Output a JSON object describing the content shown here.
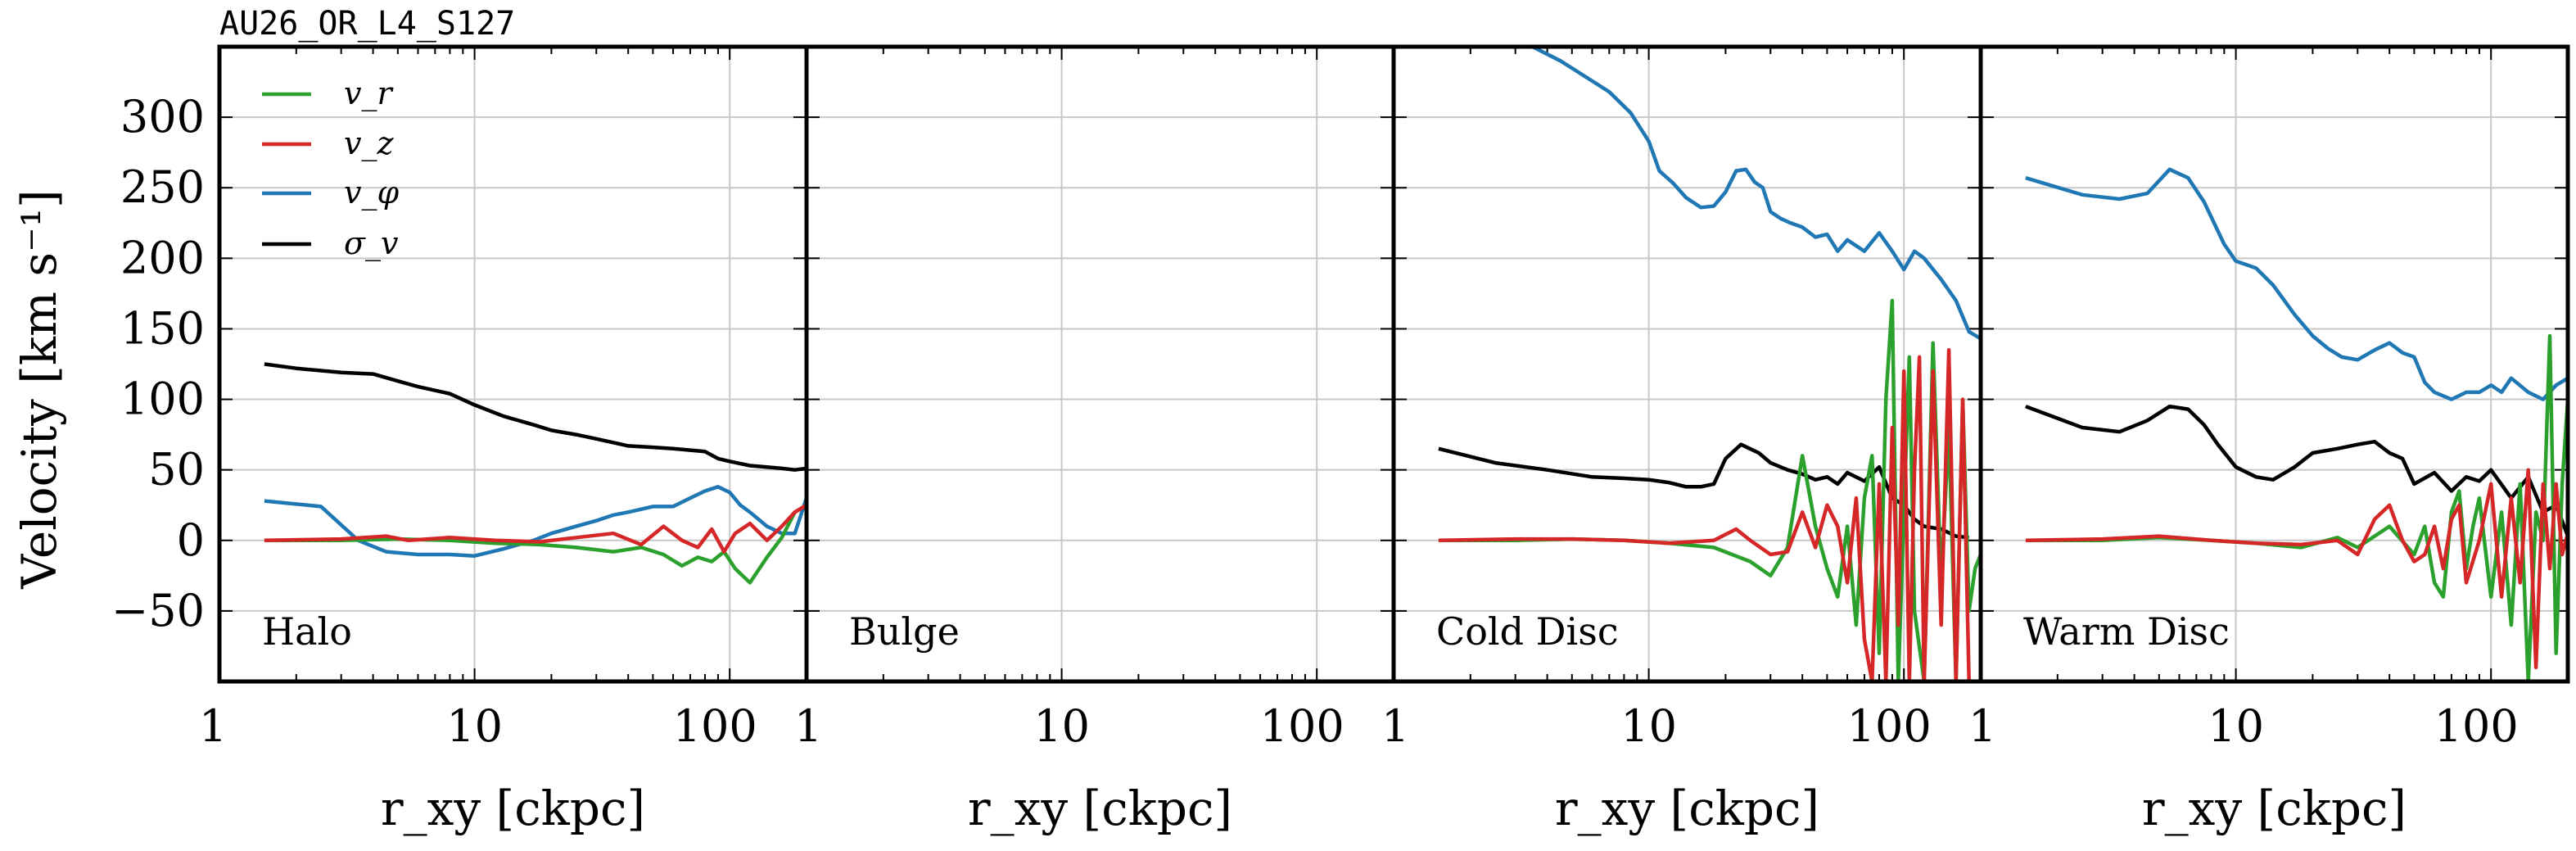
{
  "figure_title": "AU26_OR_L4_S127",
  "ylabel": "Velocity [km s⁻¹]",
  "xlabel": "r_xy [ckpc]",
  "legend": [
    "v_r",
    "v_z",
    "v_φ",
    "σ_v"
  ],
  "colors": {
    "v_r": "#2ca02c",
    "v_z": "#d62728",
    "v_phi": "#1f77b4",
    "sigma_v": "#000000"
  },
  "chart_data": [
    {
      "type": "line",
      "panel": "Halo",
      "xscale": "log",
      "xlim": [
        1,
        200
      ],
      "ylim": [
        -100,
        350
      ],
      "grid": true,
      "xticks": [
        1,
        10,
        100
      ],
      "yticks": [
        -50,
        0,
        50,
        100,
        150,
        200,
        250,
        300
      ],
      "legend_position": "top-left",
      "series": [
        {
          "name": "σ_v",
          "key": "sigma_v",
          "x": [
            1.5,
            2,
            3,
            4,
            5,
            6,
            8,
            10,
            13,
            17,
            20,
            25,
            30,
            40,
            50,
            60,
            70,
            80,
            90,
            100,
            120,
            140,
            160,
            180,
            200
          ],
          "y": [
            125,
            122,
            119,
            118,
            113,
            109,
            104,
            96,
            88,
            82,
            78,
            75,
            72,
            67,
            66,
            65,
            64,
            63,
            58,
            56,
            53,
            52,
            51,
            50,
            51
          ]
        },
        {
          "name": "v_φ",
          "key": "v_phi",
          "x": [
            1.5,
            2.5,
            3.5,
            4.5,
            6,
            8,
            10,
            13,
            17,
            20,
            25,
            30,
            35,
            40,
            50,
            60,
            70,
            80,
            90,
            100,
            110,
            120,
            140,
            160,
            180,
            200
          ],
          "y": [
            28,
            24,
            0,
            -8,
            -10,
            -10,
            -11,
            -6,
            0,
            5,
            10,
            14,
            18,
            20,
            24,
            24,
            30,
            35,
            38,
            34,
            25,
            20,
            10,
            5,
            5,
            30
          ]
        },
        {
          "name": "v_r",
          "key": "v_r",
          "x": [
            1.5,
            3,
            5,
            8,
            12,
            18,
            25,
            35,
            45,
            55,
            65,
            75,
            85,
            95,
            105,
            120,
            140,
            160,
            180,
            200
          ],
          "y": [
            0,
            0,
            1,
            0,
            -2,
            -3,
            -5,
            -8,
            -5,
            -10,
            -18,
            -12,
            -15,
            -8,
            -20,
            -30,
            -12,
            2,
            20,
            25
          ]
        },
        {
          "name": "v_z",
          "key": "v_z",
          "x": [
            1.5,
            3,
            4.5,
            5.5,
            8,
            12,
            18,
            25,
            35,
            45,
            55,
            65,
            75,
            85,
            95,
            105,
            120,
            140,
            160,
            180,
            200
          ],
          "y": [
            0,
            1,
            3,
            0,
            2,
            0,
            -1,
            2,
            5,
            -3,
            10,
            0,
            -5,
            8,
            -8,
            5,
            12,
            0,
            10,
            20,
            25
          ]
        }
      ]
    },
    {
      "type": "line",
      "panel": "Bulge",
      "xscale": "log",
      "xlim": [
        1,
        200
      ],
      "ylim": [
        -100,
        350
      ],
      "grid": true,
      "xticks": [
        1,
        10,
        100
      ],
      "series": []
    },
    {
      "type": "line",
      "panel": "Cold Disc",
      "xscale": "log",
      "xlim": [
        1,
        200
      ],
      "ylim": [
        -100,
        350
      ],
      "grid": true,
      "xticks": [
        1,
        10,
        100
      ],
      "series": [
        {
          "name": "v_φ",
          "key": "v_phi",
          "x": [
            3.5,
            4.5,
            5.5,
            7,
            8.5,
            10,
            11,
            12.5,
            14,
            16,
            18,
            20,
            22,
            24,
            26,
            28,
            30,
            33,
            36,
            40,
            45,
            50,
            55,
            60,
            70,
            80,
            90,
            100,
            110,
            120,
            140,
            160,
            180,
            200
          ],
          "y": [
            350,
            340,
            330,
            318,
            303,
            283,
            262,
            253,
            243,
            236,
            237,
            247,
            262,
            263,
            254,
            250,
            233,
            228,
            225,
            222,
            215,
            217,
            205,
            213,
            205,
            218,
            205,
            192,
            205,
            200,
            185,
            170,
            148,
            143
          ]
        },
        {
          "name": "σ_v",
          "key": "sigma_v",
          "x": [
            1.5,
            2.5,
            4,
            6,
            8,
            10,
            12,
            14,
            16,
            18,
            20,
            23,
            27,
            30,
            35,
            40,
            45,
            50,
            55,
            60,
            70,
            80,
            90,
            100,
            110,
            120,
            140,
            160,
            180
          ],
          "y": [
            65,
            55,
            50,
            45,
            44,
            43,
            41,
            38,
            38,
            40,
            58,
            68,
            62,
            55,
            50,
            47,
            43,
            45,
            40,
            48,
            42,
            52,
            30,
            25,
            15,
            10,
            8,
            3,
            2
          ]
        },
        {
          "name": "v_r",
          "key": "v_r",
          "x": [
            1.5,
            3,
            5,
            8,
            12,
            18,
            25,
            30,
            35,
            40,
            45,
            50,
            55,
            60,
            65,
            70,
            75,
            80,
            85,
            90,
            95,
            100,
            105,
            110,
            120,
            130,
            140,
            150,
            160,
            170,
            180,
            190,
            200
          ],
          "y": [
            0,
            0,
            1,
            0,
            -2,
            -5,
            -15,
            -25,
            -5,
            60,
            10,
            -20,
            -40,
            10,
            -60,
            30,
            60,
            -80,
            100,
            170,
            -100,
            20,
            130,
            -50,
            -100,
            140,
            -30,
            80,
            -100,
            100,
            -50,
            -20,
            -10
          ]
        },
        {
          "name": "v_z",
          "key": "v_z",
          "x": [
            1.5,
            3,
            5,
            8,
            12,
            18,
            22,
            25,
            30,
            35,
            40,
            45,
            50,
            55,
            60,
            65,
            70,
            75,
            80,
            85,
            90,
            95,
            100,
            105,
            110,
            115,
            120,
            130,
            140,
            150,
            160,
            170,
            180
          ],
          "y": [
            0,
            1,
            1,
            0,
            -2,
            0,
            8,
            0,
            -10,
            -8,
            20,
            -5,
            25,
            10,
            -30,
            30,
            -70,
            -100,
            40,
            -100,
            80,
            -60,
            120,
            -100,
            50,
            130,
            -100,
            120,
            -60,
            135,
            -100,
            100,
            -100
          ]
        }
      ]
    },
    {
      "type": "line",
      "panel": "Warm Disc",
      "xscale": "log",
      "xlim": [
        1,
        200
      ],
      "ylim": [
        -100,
        350
      ],
      "grid": true,
      "xticks": [
        1,
        10,
        100
      ],
      "series": [
        {
          "name": "v_φ",
          "key": "v_phi",
          "x": [
            1.5,
            2.5,
            3.5,
            4.5,
            5.5,
            6.5,
            7.5,
            9,
            10,
            12,
            14,
            17,
            20,
            23,
            26,
            30,
            35,
            40,
            45,
            50,
            55,
            60,
            70,
            80,
            90,
            100,
            110,
            120,
            140,
            160,
            180,
            200
          ],
          "y": [
            257,
            245,
            242,
            246,
            263,
            257,
            240,
            210,
            198,
            193,
            181,
            160,
            145,
            136,
            130,
            128,
            135,
            140,
            133,
            130,
            112,
            105,
            100,
            105,
            105,
            110,
            105,
            115,
            105,
            100,
            110,
            115
          ]
        },
        {
          "name": "σ_v",
          "key": "sigma_v",
          "x": [
            1.5,
            2.5,
            3.5,
            4.5,
            5.5,
            6.5,
            7.5,
            8.5,
            10,
            12,
            14,
            17,
            20,
            25,
            30,
            35,
            40,
            45,
            50,
            60,
            70,
            80,
            90,
            100,
            120,
            140,
            160,
            180,
            200
          ],
          "y": [
            95,
            80,
            77,
            85,
            95,
            93,
            82,
            68,
            52,
            45,
            43,
            52,
            62,
            65,
            68,
            70,
            62,
            58,
            40,
            48,
            35,
            45,
            42,
            50,
            30,
            45,
            20,
            25,
            3
          ]
        },
        {
          "name": "v_r",
          "key": "v_r",
          "x": [
            1.5,
            3,
            5,
            8,
            12,
            18,
            25,
            30,
            40,
            50,
            55,
            60,
            65,
            70,
            75,
            80,
            85,
            90,
            100,
            110,
            120,
            130,
            140,
            150,
            160,
            170,
            180,
            190,
            200
          ],
          "y": [
            0,
            0,
            2,
            0,
            -2,
            -5,
            2,
            -5,
            10,
            -10,
            10,
            -30,
            -40,
            20,
            35,
            -20,
            10,
            30,
            -40,
            20,
            -60,
            40,
            -100,
            20,
            0,
            145,
            -80,
            40,
            100
          ]
        },
        {
          "name": "v_z",
          "key": "v_z",
          "x": [
            1.5,
            3,
            5,
            8,
            12,
            18,
            25,
            30,
            35,
            40,
            45,
            50,
            55,
            60,
            65,
            70,
            75,
            80,
            90,
            100,
            110,
            120,
            130,
            140,
            150,
            160,
            170,
            180,
            190,
            200
          ],
          "y": [
            0,
            1,
            3,
            0,
            -2,
            -3,
            0,
            -10,
            15,
            25,
            0,
            -15,
            -10,
            10,
            -20,
            15,
            25,
            -30,
            0,
            40,
            -40,
            30,
            -30,
            50,
            -90,
            40,
            -20,
            40,
            -10,
            5
          ]
        }
      ]
    }
  ]
}
